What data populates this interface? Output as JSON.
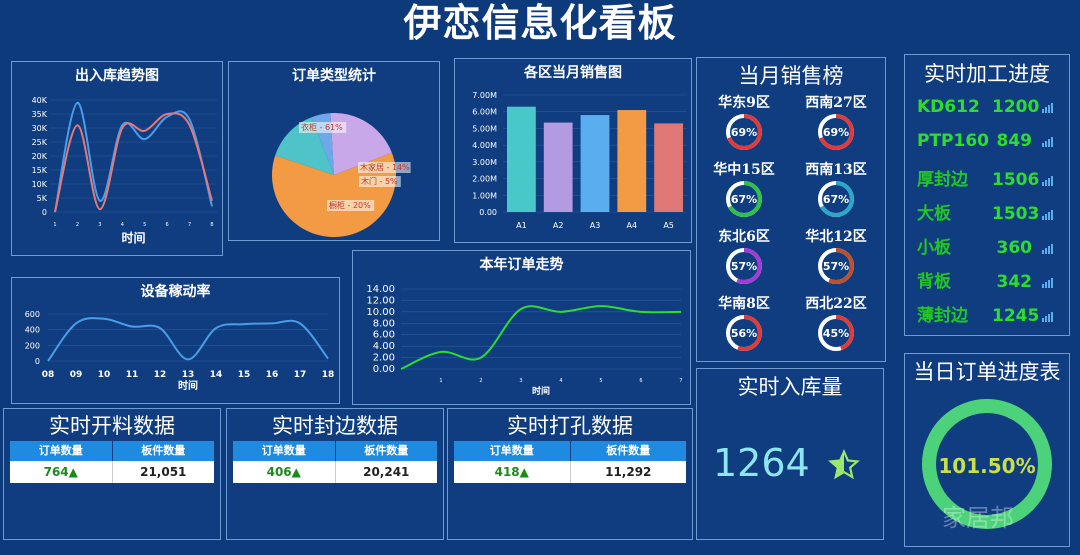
{
  "header": {
    "title": "伊恋信息化看板"
  },
  "colors": {
    "bg": "#0d3a7a",
    "panel_border": "#6f9bd4",
    "accent_green": "#2edc2e",
    "bar_blue": "#1f8be0"
  },
  "inout_chart": {
    "title": "出入库趋势图",
    "xlabel": "时间",
    "yticks": [
      "40K",
      "35K",
      "30K",
      "25K",
      "20K",
      "15K",
      "10K",
      "5K",
      "0"
    ],
    "xticks": [
      "1",
      "2",
      "3",
      "4",
      "5",
      "6",
      "7",
      "8"
    ]
  },
  "order_type_chart": {
    "title": "订单类型统计",
    "slice_labels": [
      "衣柜 - 61%",
      "木家居 - 14%",
      "木门 - 5%",
      "橱柜 - 20%"
    ]
  },
  "region_sales_chart": {
    "title": "各区当月销售图",
    "yticks": [
      "7.00M",
      "6.00M",
      "5.00M",
      "4.00M",
      "3.00M",
      "2.00M",
      "1.00M",
      "0.00"
    ]
  },
  "equipment_chart": {
    "title": "设备稼动率",
    "xlabel": "时间",
    "yticks": [
      "600",
      "400",
      "200",
      "0"
    ],
    "xticks": [
      "08",
      "09",
      "10",
      "11",
      "12",
      "13",
      "14",
      "15",
      "16",
      "17",
      "18"
    ]
  },
  "year_order_chart": {
    "title": "本年订单走势",
    "xlabel": "时间",
    "yticks": [
      "14.00",
      "12.00",
      "10.00",
      "8.00",
      "6.00",
      "4.00",
      "2.00",
      "0.00"
    ],
    "xticks": [
      "1",
      "2",
      "3",
      "4",
      "5",
      "6",
      "7"
    ]
  },
  "chart_data": [
    {
      "type": "line",
      "title": "出入库趋势图",
      "xlabel": "时间",
      "ylim": [
        0,
        40000
      ],
      "x": [
        1,
        2,
        3,
        4,
        5,
        6,
        7,
        8
      ],
      "series": [
        {
          "values": [
            0,
            39000,
            4000,
            31000,
            26000,
            34000,
            33000,
            2000
          ]
        },
        {
          "values": [
            0,
            31000,
            1000,
            30000,
            29000,
            35000,
            31000,
            4000
          ]
        }
      ]
    },
    {
      "type": "pie",
      "title": "订单类型统计",
      "categories": [
        "衣柜",
        "木家居",
        "木门",
        "橱柜"
      ],
      "values": [
        61,
        14,
        5,
        20
      ]
    },
    {
      "type": "bar",
      "title": "各区当月销售图",
      "categories": [
        "A1",
        "A2",
        "A3",
        "A4",
        "A5"
      ],
      "values": [
        6.3,
        5.35,
        5.8,
        6.1,
        5.3
      ],
      "ylim": [
        0,
        7
      ]
    },
    {
      "type": "line",
      "title": "设备稼动率",
      "xlabel": "时间",
      "ylim": [
        0,
        600
      ],
      "x": [
        8,
        9,
        10,
        11,
        12,
        13,
        14,
        15,
        16,
        17,
        18
      ],
      "values": [
        0,
        480,
        540,
        440,
        420,
        20,
        420,
        470,
        480,
        480,
        30
      ]
    },
    {
      "type": "line",
      "title": "本年订单走势",
      "xlabel": "时间",
      "ylim": [
        0,
        14
      ],
      "x": [
        0,
        1,
        2,
        3,
        4,
        5,
        6,
        7
      ],
      "values": [
        0,
        3,
        2,
        10.5,
        10,
        11,
        10,
        10
      ]
    }
  ],
  "sales_rank": {
    "title": "当月销售榜",
    "items": [
      {
        "region": "华东9区",
        "pct": "69%",
        "color": "#e03b3b"
      },
      {
        "region": "西南27区",
        "pct": "69%",
        "color": "#e03b3b"
      },
      {
        "region": "华中15区",
        "pct": "67%",
        "color": "#2ec24a"
      },
      {
        "region": "西南13区",
        "pct": "67%",
        "color": "#2aa8c8"
      },
      {
        "region": "东北6区",
        "pct": "57%",
        "color": "#a23bd4"
      },
      {
        "region": "华北12区",
        "pct": "57%",
        "color": "#c0502a"
      },
      {
        "region": "华南8区",
        "pct": "56%",
        "color": "#e03b3b"
      },
      {
        "region": "西北22区",
        "pct": "45%",
        "color": "#e03b3b"
      }
    ]
  },
  "processing": {
    "title": "实时加工进度",
    "items": [
      {
        "name": "KD612",
        "value": "1200"
      },
      {
        "name": "PTP160",
        "value": "849"
      },
      {
        "name": "厚封边",
        "value": "1506"
      },
      {
        "name": "大板",
        "value": "1503"
      },
      {
        "name": "小板",
        "value": "360"
      },
      {
        "name": "背板",
        "value": "342"
      },
      {
        "name": "薄封边",
        "value": "1245"
      }
    ]
  },
  "cutting": {
    "title": "实时开料数据",
    "col1": "订单数量",
    "col2": "板件数量",
    "orders": "764▲",
    "parts": "21,051"
  },
  "edging": {
    "title": "实时封边数据",
    "col1": "订单数量",
    "col2": "板件数量",
    "orders": "406▲",
    "parts": "20,241"
  },
  "drilling": {
    "title": "实时打孔数据",
    "col1": "订单数量",
    "col2": "板件数量",
    "orders": "418▲",
    "parts": "11,292"
  },
  "inbound": {
    "title": "实时入库量",
    "value": "1264"
  },
  "daily_progress": {
    "title": "当日订单进度表",
    "value": "101.50%",
    "fraction": 1.0
  },
  "watermark": {
    "text": "家居邦"
  }
}
